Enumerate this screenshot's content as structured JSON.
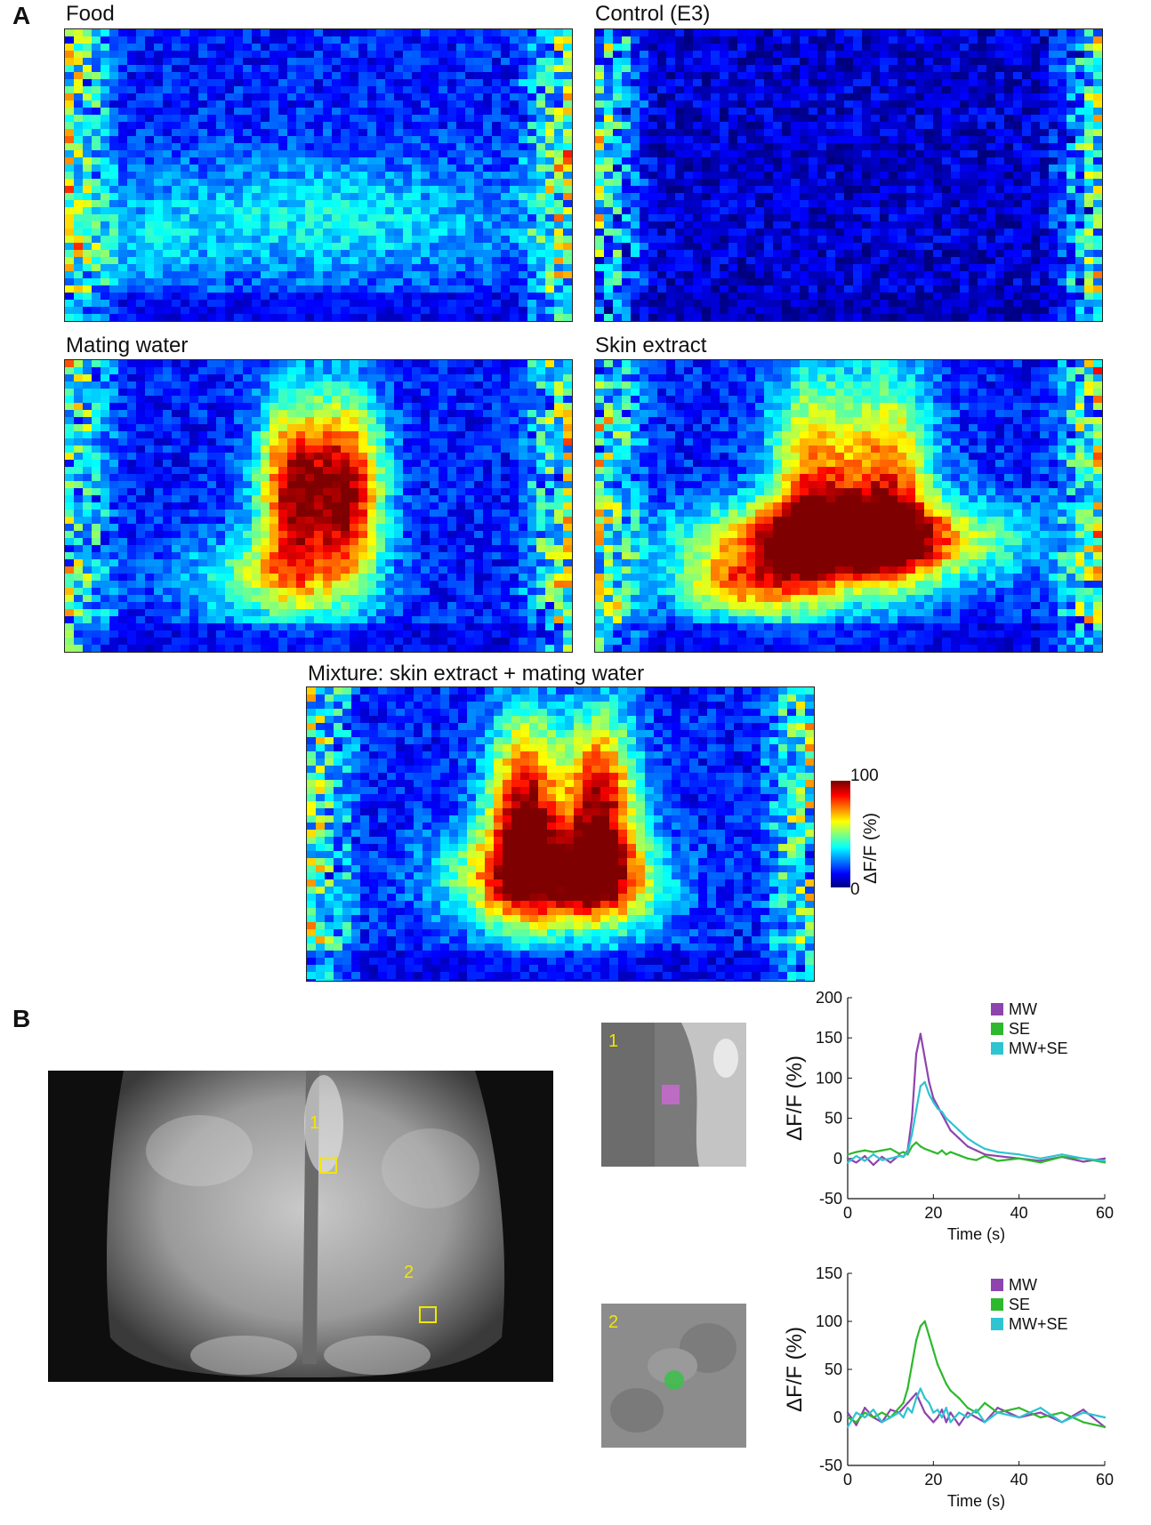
{
  "panelA": {
    "letter": "A",
    "maps": [
      {
        "title": "Food",
        "intensity": "food"
      },
      {
        "title": "Control (E3)",
        "intensity": "control"
      },
      {
        "title": "Mating water",
        "intensity": "mw"
      },
      {
        "title": "Skin extract",
        "intensity": "se"
      },
      {
        "title": "Mixture: skin extract + mating water",
        "intensity": "mix"
      }
    ],
    "colorbar": {
      "max_label": "100",
      "min_label": "0",
      "axis_label": "ΔF/F (%)",
      "colormap": [
        "#00007f",
        "#0000ff",
        "#007fff",
        "#00ffff",
        "#7fff7f",
        "#ffff00",
        "#ff7f00",
        "#ff0000",
        "#7f0000"
      ]
    }
  },
  "panelB": {
    "letter": "B",
    "roi_labels": [
      "1",
      "2"
    ],
    "roi_colors": {
      "roi1": "#c86bd0",
      "roi2": "#3cbf4a"
    },
    "roi_box_color": "#f2e600"
  },
  "chart_data": [
    {
      "type": "line",
      "panel": "B-ROI1",
      "xlabel": "Time (s)",
      "ylabel": "ΔF/F (%)",
      "xlim": [
        0,
        60
      ],
      "ylim": [
        -50,
        200
      ],
      "xticks": [
        0,
        20,
        40,
        60
      ],
      "yticks": [
        -50,
        0,
        50,
        100,
        150,
        200
      ],
      "legend_position": "top-right",
      "x": [
        0,
        2,
        4,
        6,
        8,
        10,
        12,
        13,
        14,
        15,
        16,
        17,
        18,
        19,
        20,
        21,
        22,
        23,
        24,
        26,
        28,
        30,
        32,
        35,
        40,
        45,
        50,
        55,
        60
      ],
      "series": [
        {
          "name": "MW",
          "color": "#8e44ad",
          "values": [
            0,
            -5,
            3,
            -8,
            2,
            -5,
            4,
            2,
            10,
            50,
            130,
            155,
            125,
            95,
            75,
            65,
            55,
            45,
            35,
            25,
            15,
            10,
            5,
            3,
            0,
            -3,
            2,
            -4,
            0
          ]
        },
        {
          "name": "SE",
          "color": "#2eb82e",
          "values": [
            5,
            8,
            10,
            8,
            10,
            12,
            6,
            8,
            5,
            15,
            20,
            15,
            12,
            10,
            8,
            6,
            10,
            5,
            8,
            4,
            0,
            -2,
            3,
            -3,
            0,
            -5,
            2,
            0,
            -5
          ]
        },
        {
          "name": "MW+SE",
          "color": "#2ec4d2",
          "values": [
            -5,
            3,
            -3,
            5,
            -2,
            0,
            3,
            2,
            8,
            30,
            60,
            90,
            95,
            80,
            70,
            62,
            58,
            50,
            45,
            35,
            25,
            18,
            12,
            8,
            5,
            0,
            5,
            0,
            -3
          ]
        }
      ]
    },
    {
      "type": "line",
      "panel": "B-ROI2",
      "xlabel": "Time (s)",
      "ylabel": "ΔF/F (%)",
      "xlim": [
        0,
        60
      ],
      "ylim": [
        -50,
        150
      ],
      "xticks": [
        0,
        20,
        40,
        60
      ],
      "yticks": [
        -50,
        0,
        50,
        100,
        150
      ],
      "legend_position": "top-right",
      "x": [
        0,
        2,
        4,
        6,
        8,
        10,
        12,
        13,
        14,
        15,
        16,
        17,
        18,
        19,
        20,
        21,
        22,
        23,
        24,
        26,
        28,
        30,
        32,
        35,
        40,
        45,
        50,
        55,
        60
      ],
      "series": [
        {
          "name": "MW",
          "color": "#8e44ad",
          "values": [
            5,
            -8,
            10,
            0,
            -5,
            8,
            5,
            10,
            15,
            20,
            25,
            15,
            5,
            0,
            -5,
            0,
            8,
            -5,
            5,
            -8,
            5,
            0,
            -5,
            10,
            0,
            5,
            -5,
            8,
            -10
          ]
        },
        {
          "name": "SE",
          "color": "#2eb82e",
          "values": [
            0,
            -5,
            5,
            0,
            5,
            0,
            10,
            15,
            30,
            55,
            80,
            95,
            100,
            85,
            70,
            55,
            45,
            35,
            28,
            20,
            10,
            5,
            15,
            5,
            10,
            0,
            5,
            -5,
            -10
          ]
        },
        {
          "name": "MW+SE",
          "color": "#2ec4d2",
          "values": [
            -10,
            5,
            0,
            8,
            -5,
            0,
            5,
            0,
            10,
            5,
            20,
            30,
            20,
            15,
            5,
            8,
            0,
            10,
            -5,
            5,
            0,
            8,
            -5,
            5,
            0,
            10,
            -5,
            5,
            0
          ]
        }
      ]
    }
  ]
}
